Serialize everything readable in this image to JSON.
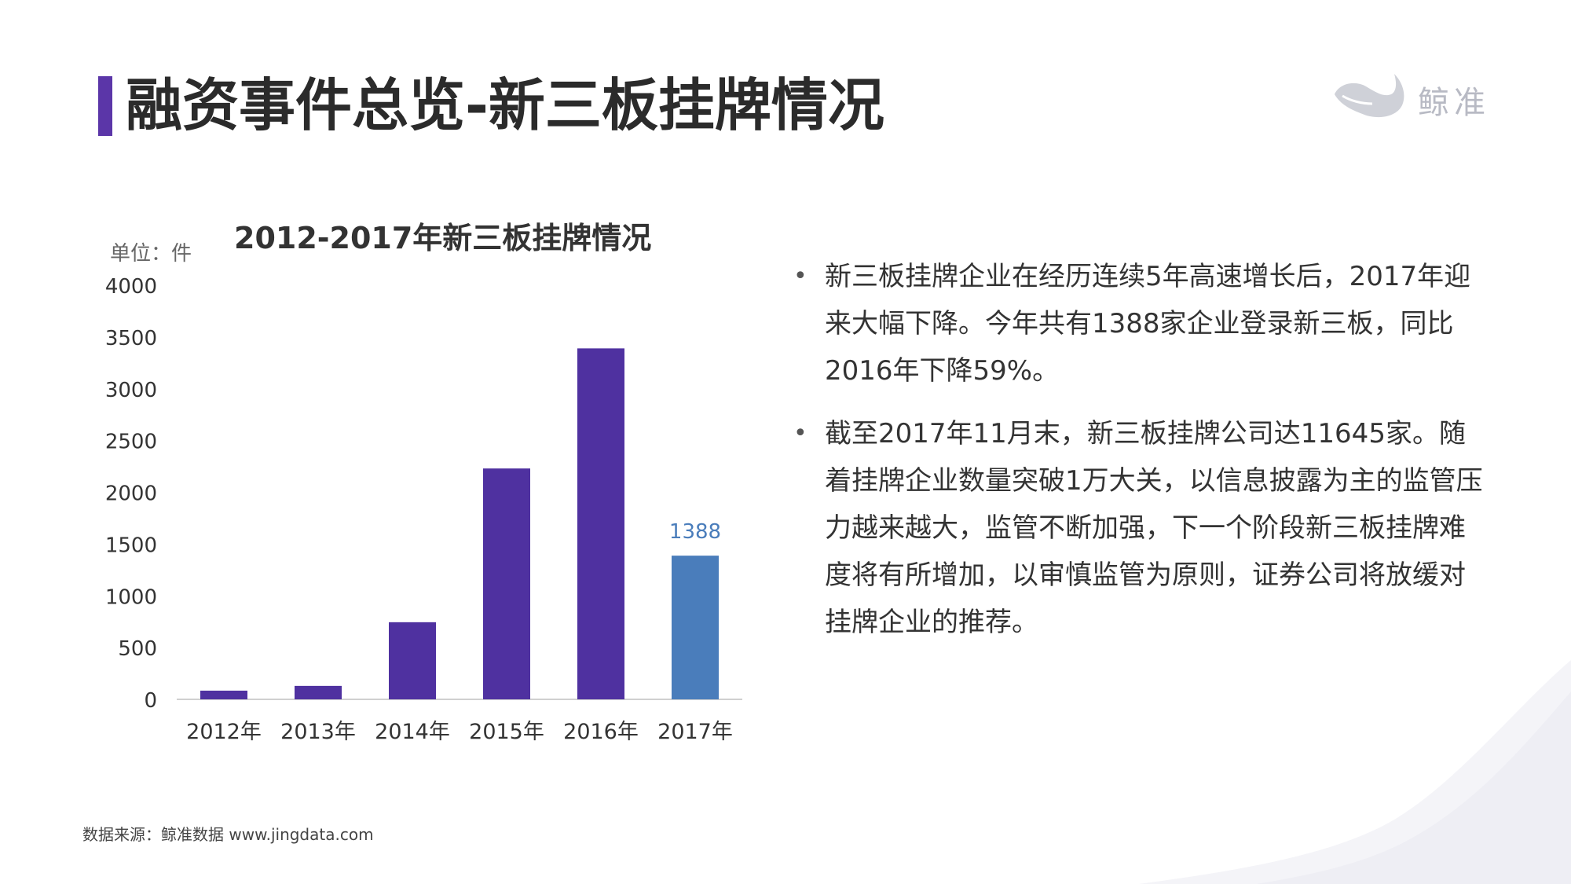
{
  "page": {
    "title": "融资事件总览-新三板挂牌情况",
    "logo_text": "鲸准",
    "source": "数据来源：鲸准数据 www.jingdata.com"
  },
  "bullets": [
    "新三板挂牌企业在经历连续5年高速增长后，2017年迎来大幅下降。今年共有1388家企业登录新三板，同比2016年下降59%。",
    "截至2017年11月末，新三板挂牌公司达11645家。随着挂牌企业数量突破1万大关，以信息披露为主的监管压力越来越大，监管不断加强，下一个阶段新三板挂牌难度将有所增加，以审慎监管为原则，证券公司将放缓对挂牌企业的推荐。"
  ],
  "chart_data": {
    "type": "bar",
    "title": "2012-2017年新三板挂牌情况",
    "unit_label": "单位：件",
    "categories": [
      "2012年",
      "2013年",
      "2014年",
      "2015年",
      "2016年",
      "2017年"
    ],
    "values": [
      84,
      130,
      745,
      2230,
      3390,
      1388
    ],
    "y_ticks": [
      "0",
      "500",
      "1000",
      "1500",
      "2000",
      "2500",
      "3000",
      "3500",
      "4000"
    ],
    "ylim": [
      0,
      4000
    ],
    "data_labels": [
      {
        "index": 5,
        "text": "1388"
      }
    ],
    "colors": {
      "default_bar": "#4f31a0",
      "highlight_bar": "#4a7dbb",
      "highlight_label": "#4a7dbb",
      "axis": "#d0d0d0",
      "tick_text": "#333333"
    },
    "highlight_index": 5,
    "grid": false
  },
  "colors": {
    "accent": "#5b36a8",
    "logo": "#b8bac4"
  }
}
